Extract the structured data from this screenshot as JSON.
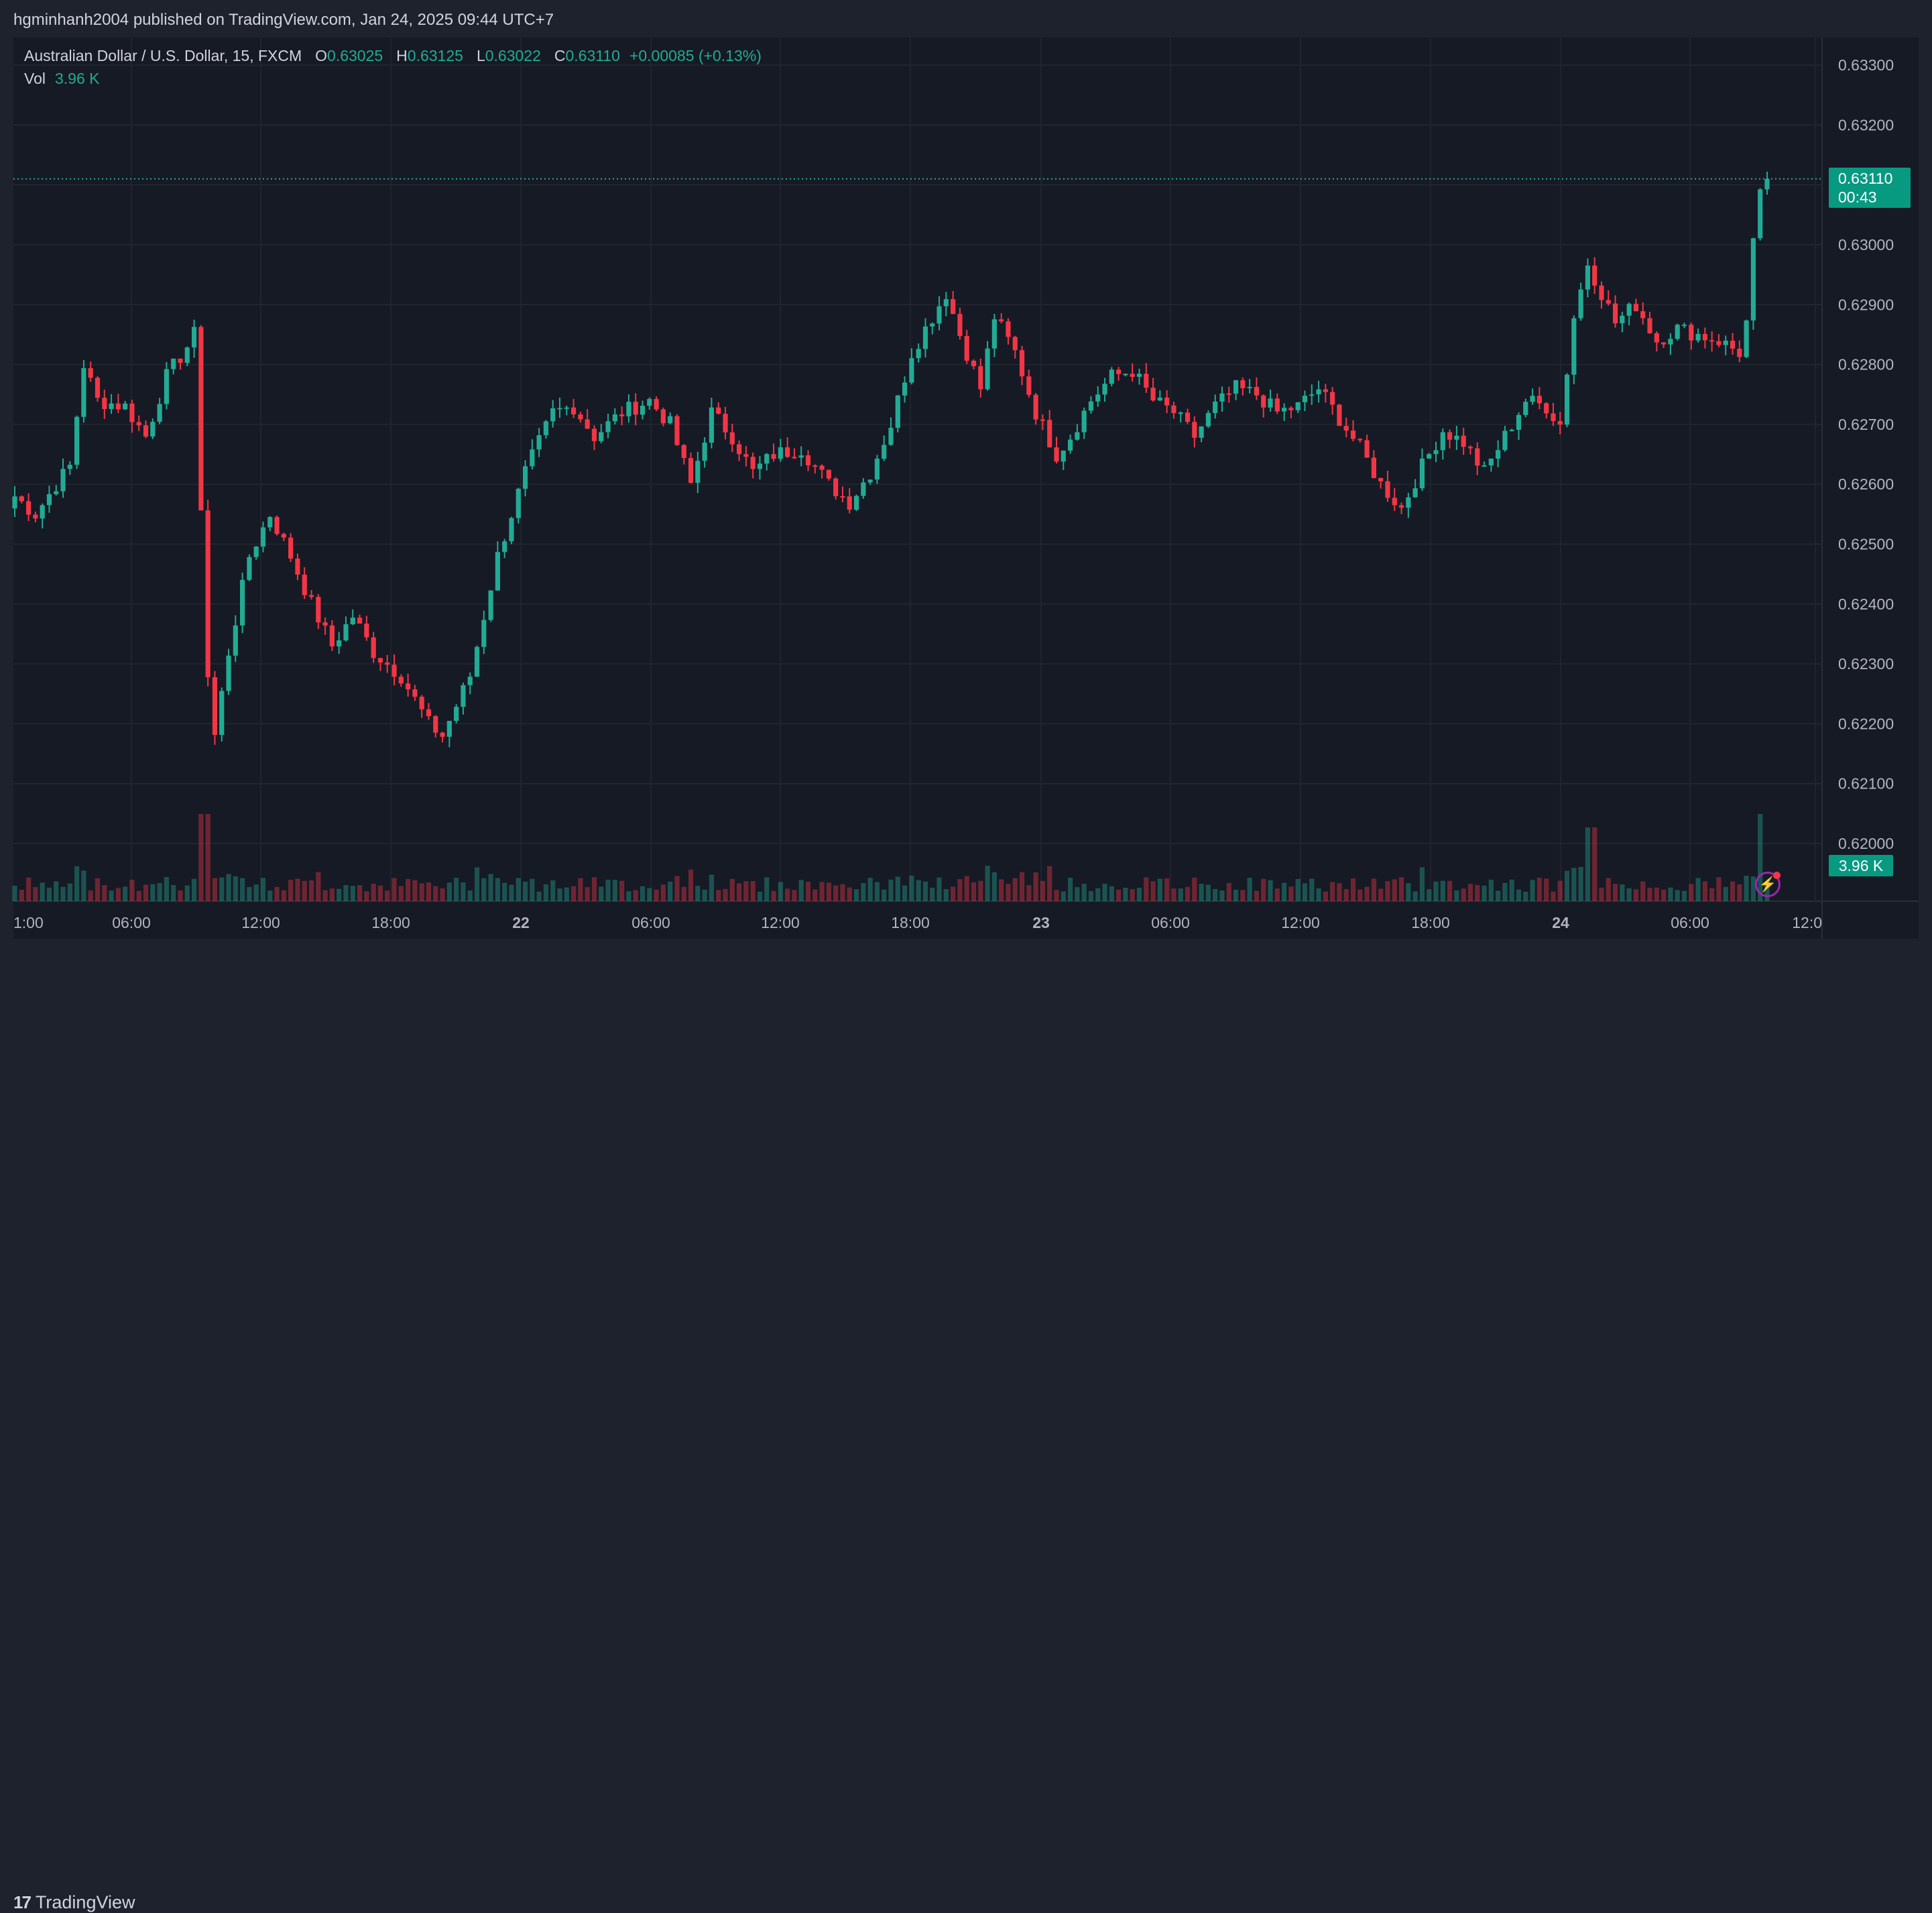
{
  "header": {
    "published_text": "hgminhanh2004 published on TradingView.com, Jan 24, 2025 09:44 UTC+7"
  },
  "legend": {
    "symbol": "Australian Dollar / U.S. Dollar, 15, FXCM",
    "open_label": "O",
    "open": "0.63025",
    "high_label": "H",
    "high": "0.63125",
    "low_label": "L",
    "low": "0.63022",
    "close_label": "C",
    "close": "0.63110",
    "change": "+0.00085 (+0.13%)",
    "vol_label": "Vol",
    "vol": "3.96 K"
  },
  "price_tag": {
    "price": "0.63110",
    "countdown": "00:43"
  },
  "volume_tag": "3.96 K",
  "footer": {
    "brand": "TradingView",
    "brand_mark": "17"
  },
  "colors": {
    "up": "#22ab94",
    "down": "#f23645",
    "up_volume": "#22ab9466",
    "down_volume": "#f2364566",
    "grid": "#242832",
    "background": "#161a25"
  },
  "chart_data": {
    "type": "candlestick",
    "symbol": "AUDUSD",
    "timeframe": "15",
    "y_axis_ticks": [
      "0.63300",
      "0.63200",
      "0.63100",
      "0.63000",
      "0.62900",
      "0.62800",
      "0.62700",
      "0.62600",
      "0.62500",
      "0.62400",
      "0.62300",
      "0.62200",
      "0.62100",
      "0.62000"
    ],
    "ylim": [
      0.6193,
      0.6335
    ],
    "x_axis_ticks": [
      "1:00",
      "06:00",
      "12:00",
      "18:00",
      "22",
      "06:00",
      "12:00",
      "18:00",
      "23",
      "06:00",
      "12:00",
      "18:00",
      "24",
      "06:00",
      "12:0"
    ],
    "x_tick_bold": [
      false,
      false,
      false,
      false,
      true,
      false,
      false,
      false,
      true,
      false,
      false,
      false,
      true,
      false,
      false
    ],
    "last_price": 0.6311,
    "close_path_keypoints": [
      [
        0,
        0.6258
      ],
      [
        3,
        0.6255
      ],
      [
        6,
        0.626
      ],
      [
        8,
        0.6263
      ],
      [
        10,
        0.628
      ],
      [
        12,
        0.6274
      ],
      [
        16,
        0.6273
      ],
      [
        19,
        0.6268
      ],
      [
        22,
        0.6278
      ],
      [
        25,
        0.6283
      ],
      [
        26,
        0.6285
      ],
      [
        28,
        0.6228
      ],
      [
        29,
        0.6218
      ],
      [
        31,
        0.6232
      ],
      [
        34,
        0.6248
      ],
      [
        37,
        0.6255
      ],
      [
        40,
        0.6248
      ],
      [
        43,
        0.624
      ],
      [
        46,
        0.6233
      ],
      [
        49,
        0.6238
      ],
      [
        52,
        0.6232
      ],
      [
        56,
        0.6228
      ],
      [
        60,
        0.622
      ],
      [
        62,
        0.6218
      ],
      [
        66,
        0.6228
      ],
      [
        70,
        0.6248
      ],
      [
        74,
        0.6262
      ],
      [
        78,
        0.6272
      ],
      [
        81,
        0.6273
      ],
      [
        84,
        0.6268
      ],
      [
        88,
        0.6272
      ],
      [
        92,
        0.6274
      ],
      [
        95,
        0.627
      ],
      [
        98,
        0.626
      ],
      [
        101,
        0.6272
      ],
      [
        104,
        0.6268
      ],
      [
        107,
        0.6262
      ],
      [
        110,
        0.6265
      ],
      [
        114,
        0.6266
      ],
      [
        118,
        0.626
      ],
      [
        121,
        0.6257
      ],
      [
        124,
        0.6262
      ],
      [
        127,
        0.627
      ],
      [
        130,
        0.6282
      ],
      [
        133,
        0.6288
      ],
      [
        135,
        0.6292
      ],
      [
        137,
        0.6285
      ],
      [
        140,
        0.6276
      ],
      [
        142,
        0.6288
      ],
      [
        145,
        0.6282
      ],
      [
        148,
        0.6272
      ],
      [
        151,
        0.6265
      ],
      [
        153,
        0.6268
      ],
      [
        156,
        0.6274
      ],
      [
        159,
        0.6278
      ],
      [
        162,
        0.6279
      ],
      [
        165,
        0.6274
      ],
      [
        168,
        0.6272
      ],
      [
        171,
        0.6268
      ],
      [
        174,
        0.6273
      ],
      [
        177,
        0.6276
      ],
      [
        180,
        0.6275
      ],
      [
        183,
        0.6272
      ],
      [
        186,
        0.6273
      ],
      [
        189,
        0.6276
      ],
      [
        192,
        0.6271
      ],
      [
        195,
        0.6266
      ],
      [
        198,
        0.626
      ],
      [
        201,
        0.6256
      ],
      [
        204,
        0.6263
      ],
      [
        207,
        0.6269
      ],
      [
        210,
        0.6267
      ],
      [
        213,
        0.6262
      ],
      [
        216,
        0.6268
      ],
      [
        219,
        0.6274
      ],
      [
        222,
        0.6273
      ],
      [
        224,
        0.627
      ],
      [
        226,
        0.6288
      ],
      [
        228,
        0.6297
      ],
      [
        230,
        0.6292
      ],
      [
        232,
        0.6287
      ],
      [
        235,
        0.629
      ],
      [
        238,
        0.6284
      ],
      [
        241,
        0.6286
      ],
      [
        244,
        0.6285
      ],
      [
        247,
        0.6284
      ],
      [
        250,
        0.6282
      ],
      [
        251,
        0.6287
      ],
      [
        252,
        0.63
      ],
      [
        253,
        0.6308
      ],
      [
        254,
        0.6311
      ]
    ],
    "volume_unit": "K"
  }
}
